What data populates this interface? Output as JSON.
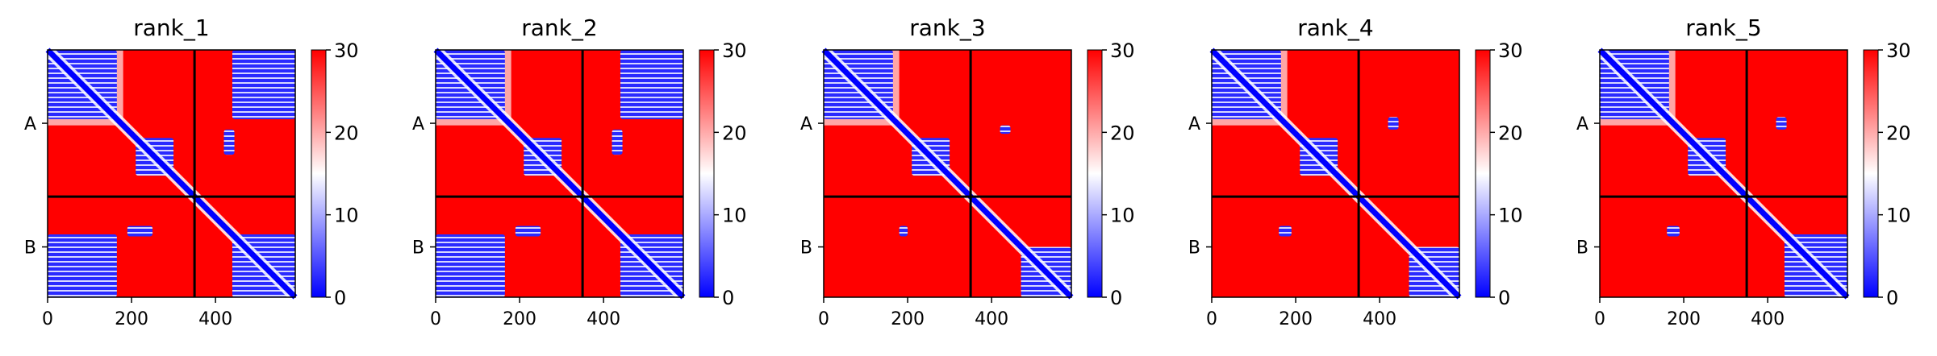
{
  "chart_data": {
    "type": "heatmap",
    "colorbar": {
      "min": 0,
      "max": 30,
      "ticks": [
        0,
        10,
        20,
        30
      ],
      "colormap": "bwr"
    },
    "x_ticks": [
      0,
      200,
      400
    ],
    "x_range": [
      0,
      590
    ],
    "chain_boundary": 350,
    "chains": [
      {
        "label": "A",
        "start": 0,
        "end": 350
      },
      {
        "label": "B",
        "start": 350,
        "end": 590
      }
    ],
    "panels": [
      {
        "title": "rank_1"
      },
      {
        "title": "rank_2"
      },
      {
        "title": "rank_3"
      },
      {
        "title": "rank_4"
      },
      {
        "title": "rank_5"
      }
    ]
  },
  "colors": {
    "low": "#0000ff",
    "mid": "#ffffff",
    "high": "#ff0000",
    "line": "#000000"
  }
}
